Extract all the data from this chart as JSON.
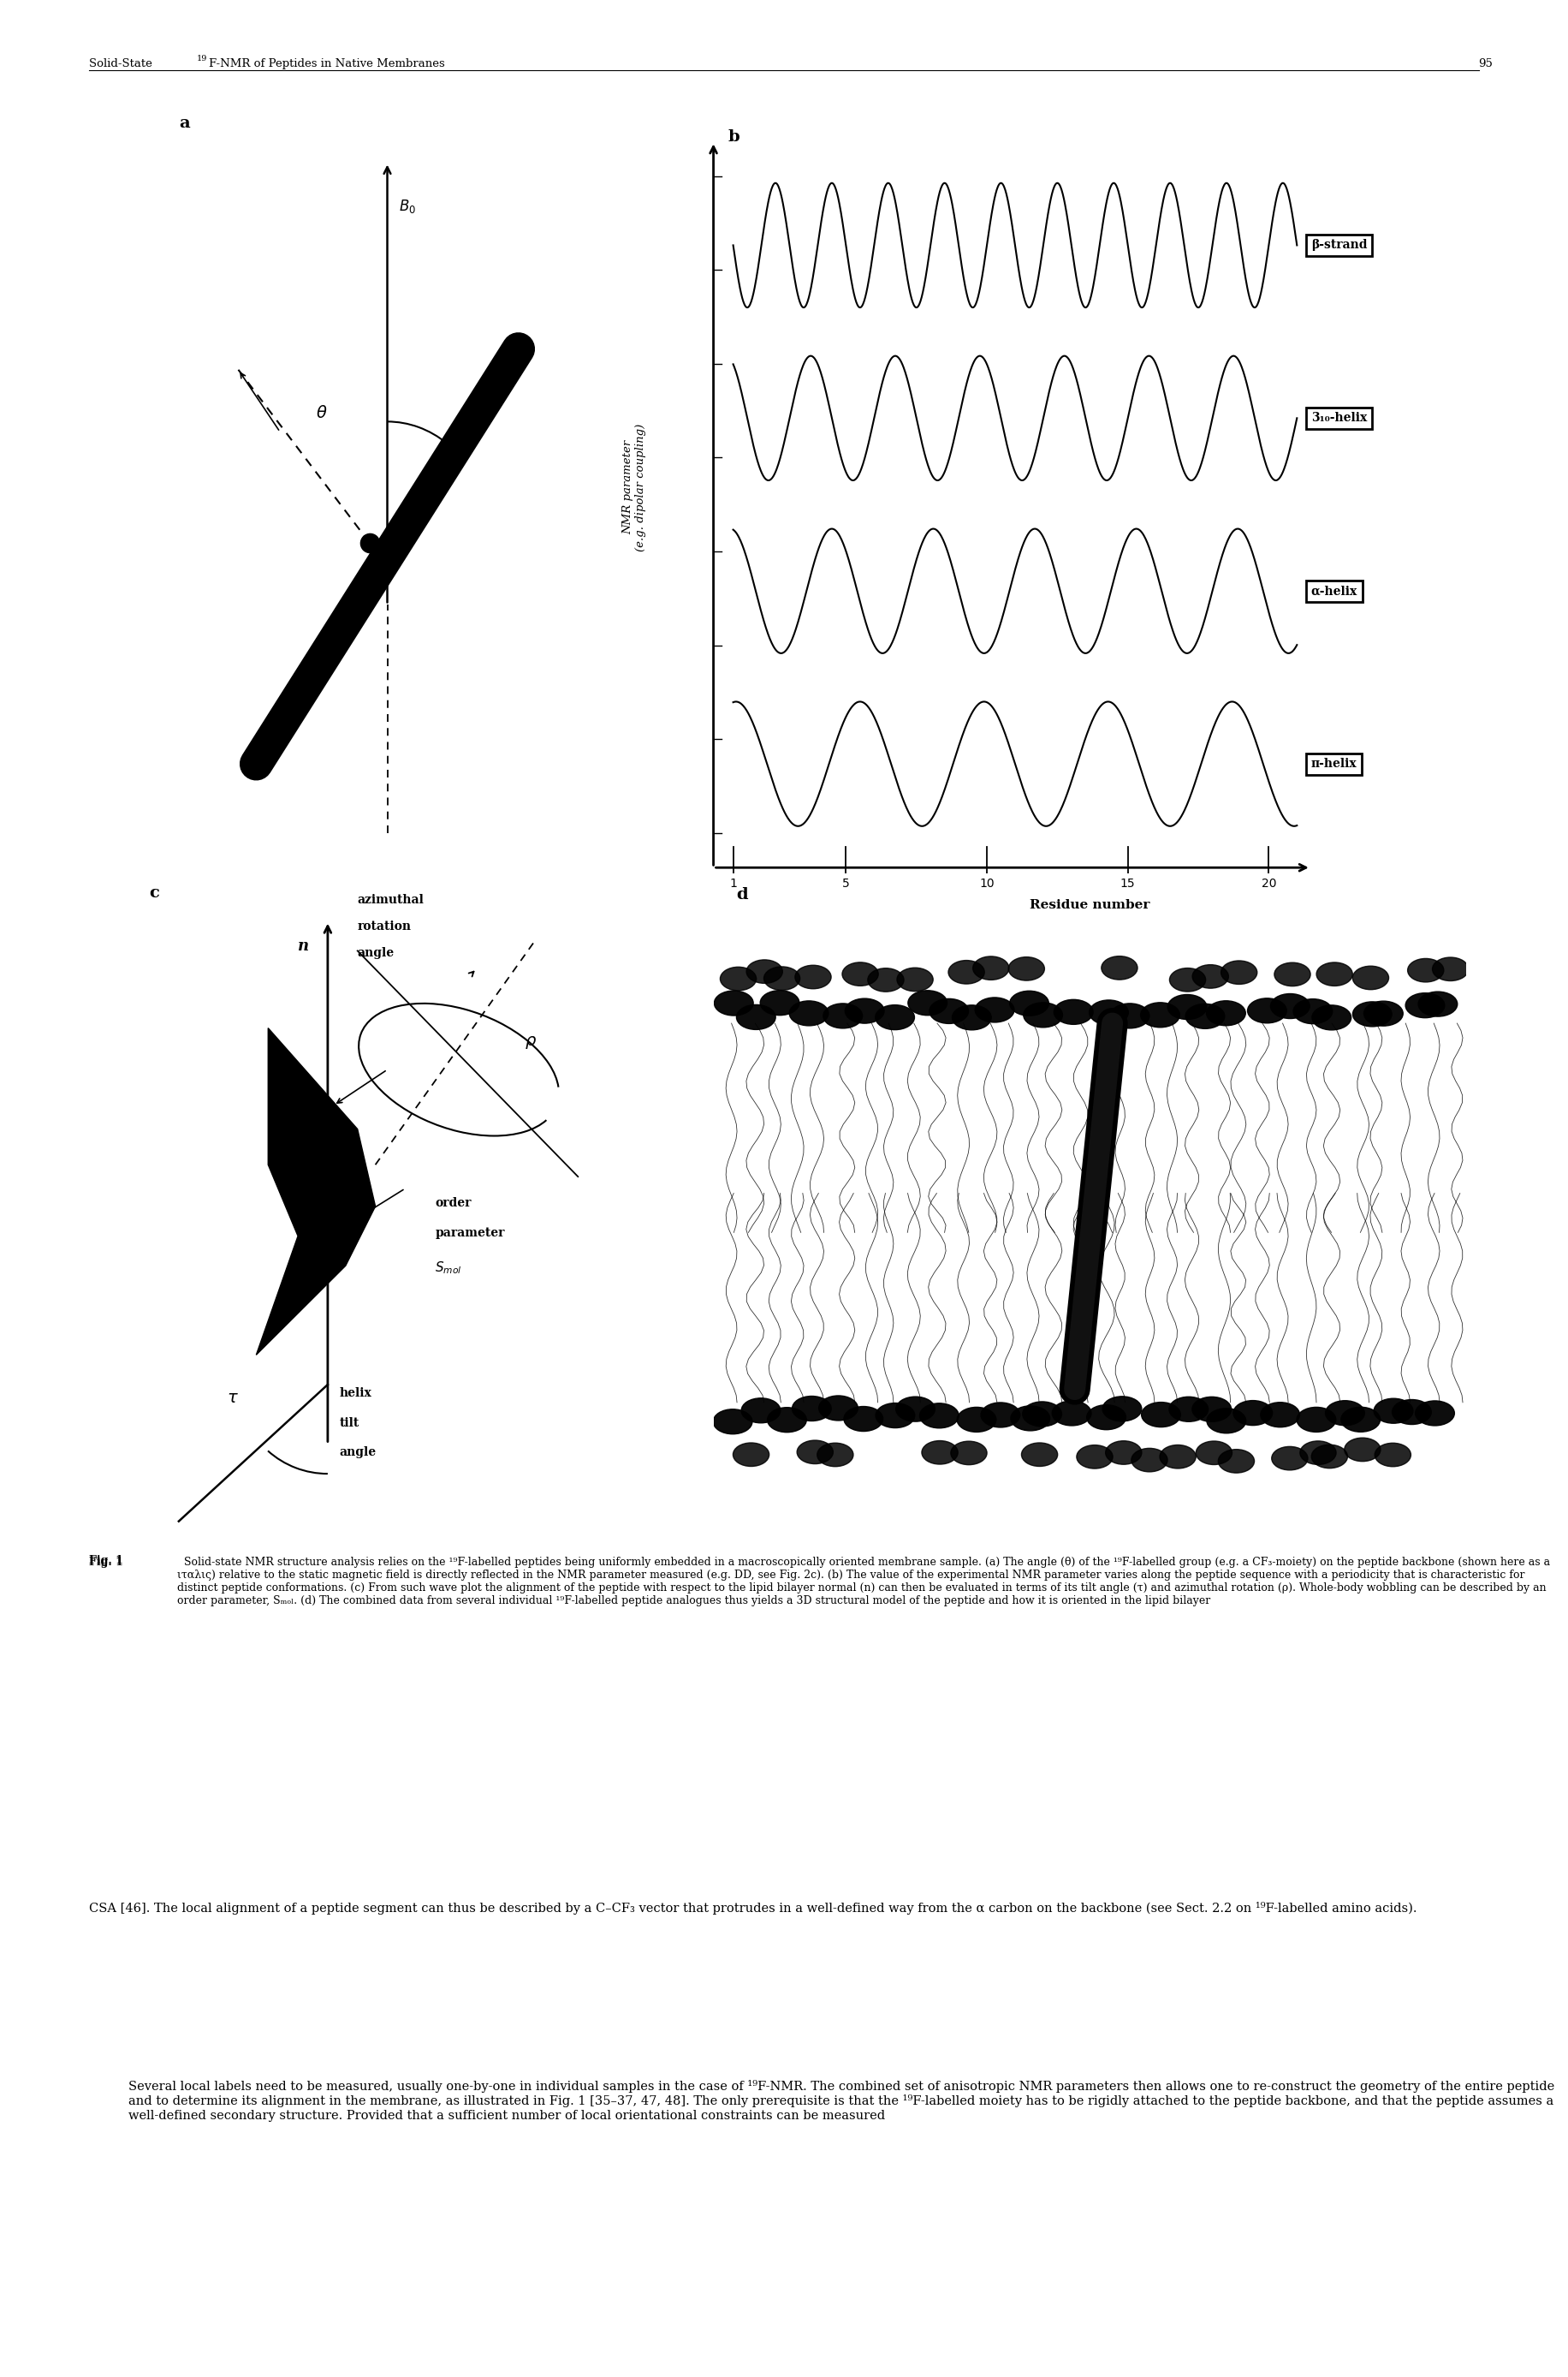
{
  "background_color": "#ffffff",
  "header_left": "Solid-State ",
  "header_sup": "19",
  "header_right": "F-NMR of Peptides in Native Membranes",
  "header_page": "95",
  "panel_labels": [
    "a",
    "b",
    "c",
    "d"
  ],
  "panel_b_xlabel": "Residue number",
  "panel_b_ylabel_line1": "NMR parameter",
  "panel_b_ylabel_line2": "(e.g. dipolar coupling)",
  "panel_b_xticks": [
    1,
    5,
    10,
    15,
    20
  ],
  "wave_labels": [
    "β-strand",
    "3₁₀-helix",
    "α-helix",
    "π-helix"
  ],
  "wave_periods": [
    2.0,
    3.0,
    3.6,
    4.4
  ],
  "wave_offsets": [
    7.5,
    5.0,
    2.5,
    0.0
  ],
  "wave_amplitude": 0.9,
  "caption_bold": "Fig. 1",
  "caption_normal": "  Solid-state NMR structure analysis relies on the ¹⁹F-labelled peptides being uniformly embedded in a macroscopically oriented membrane sample. (a) The angle (θ) of the ¹⁹F-labelled group (e.g. a CF₃-moiety) on the peptide backbone (shown here as a ιταλις) relative to the static magnetic field is directly reflected in the NMR parameter measured (e.g. DD, see Fig. 2c). (b) The value of the experimental NMR parameter varies along the peptide sequence with a periodicity that is characteristic for distinct peptide conformations. (c) From such wave plot the alignment of the peptide with respect to the lipid bilayer normal (n) can then be evaluated in terms of its tilt angle (τ) and azimuthal rotation (ρ). Whole-body wobbling can be described by an order parameter, Sₘₒₗ. (d) The combined data from several individual ¹⁹F-labelled peptide analogues thus yields a 3D structural model of the peptide and how it is oriented in the lipid bilayer",
  "body1_indent": false,
  "body1": "CSA [46]. The local alignment of a peptide segment can thus be described by a C–CF₃ vector that protrudes in a well-defined way from the α carbon on the backbone (see Sect. 2.2 on ¹⁹F-labelled amino acids).",
  "body2_indent": true,
  "body2": "Several local labels need to be measured, usually one-by-one in individual samples in the case of ¹⁹F-NMR. The combined set of anisotropic NMR parameters then allows one to re-construct the geometry of the entire peptide and to determine its alignment in the membrane, as illustrated in Fig. 1 [35–37, 47, 48]. The only prerequisite is that the ¹⁹F-labelled moiety has to be rigidly attached to the peptide backbone, and that the peptide assumes a well-defined secondary structure. Provided that a sufficient number of local orientational constraints can be measured"
}
